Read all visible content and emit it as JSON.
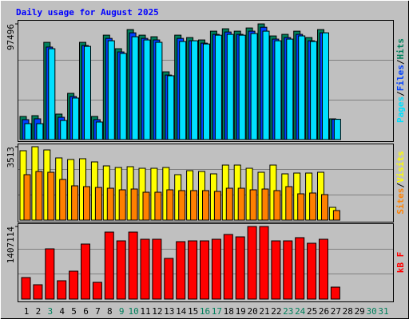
{
  "title": "Daily usage for August 2025",
  "legend_separator": "/",
  "chart_data": [
    {
      "type": "bar",
      "ylim": [
        0,
        97496
      ],
      "yticks": [
        97496
      ],
      "series": [
        {
          "name": "Hits",
          "color": "#00805c",
          "values": [
            19488,
            20160,
            81984,
            21504,
            38976,
            81984,
            19488,
            88032,
            76608,
            92736,
            88032,
            86688,
            57120,
            88032,
            86016,
            84000,
            91392,
            93408,
            91392,
            94080,
            97496,
            87360,
            88704,
            91392,
            86016,
            92736,
            17472,
            0,
            0,
            0,
            0
          ]
        },
        {
          "name": "Files",
          "color": "#0040ff",
          "values": [
            16800,
            17500,
            78000,
            18800,
            36300,
            79300,
            16800,
            85300,
            73900,
            90000,
            85300,
            84000,
            54400,
            85300,
            83300,
            81300,
            88700,
            90700,
            88700,
            91400,
            94700,
            84700,
            86000,
            88700,
            83300,
            90000,
            17100,
            0,
            0,
            0,
            0
          ]
        },
        {
          "name": "Pages",
          "color": "#00e0ff",
          "values": [
            13440,
            13400,
            76600,
            16100,
            35000,
            78600,
            14800,
            83300,
            72600,
            86700,
            84000,
            82000,
            53800,
            82700,
            83300,
            80600,
            88000,
            88700,
            88000,
            89400,
            91400,
            83300,
            84700,
            87400,
            82700,
            90000,
            17100,
            0,
            0,
            0,
            0
          ]
        }
      ]
    },
    {
      "type": "bar",
      "ylim": [
        0,
        3513
      ],
      "yticks": [
        3513
      ],
      "series": [
        {
          "name": "Visits",
          "color": "#ffff00",
          "values": [
            3322,
            3513,
            3360,
            2978,
            2902,
            2940,
            2787,
            2596,
            2520,
            2558,
            2482,
            2482,
            2520,
            2176,
            2367,
            2329,
            2215,
            2635,
            2635,
            2482,
            2291,
            2635,
            2215,
            2253,
            2253,
            2291,
            611,
            0,
            0,
            0,
            0
          ]
        },
        {
          "name": "Sites",
          "color": "#ff8000",
          "values": [
            2176,
            2329,
            2291,
            1947,
            1642,
            1604,
            1565,
            1527,
            1451,
            1489,
            1336,
            1336,
            1451,
            1413,
            1413,
            1413,
            1375,
            1527,
            1527,
            1451,
            1489,
            1413,
            1604,
            1260,
            1298,
            1222,
            458,
            0,
            0,
            0,
            0
          ]
        }
      ]
    },
    {
      "type": "bar",
      "ylim": [
        0,
        1407114
      ],
      "yticks": [
        1407114
      ],
      "categories": [
        "1",
        "2",
        "3",
        "4",
        "5",
        "6",
        "7",
        "8",
        "9",
        "10",
        "11",
        "12",
        "13",
        "14",
        "15",
        "16",
        "17",
        "18",
        "19",
        "20",
        "21",
        "22",
        "23",
        "24",
        "25",
        "26",
        "27",
        "28",
        "29",
        "30",
        "31"
      ],
      "category_colors": [
        "#000000",
        "#000000",
        "#00805c",
        "#000000",
        "#000000",
        "#000000",
        "#000000",
        "#000000",
        "#00805c",
        "#00805c",
        "#000000",
        "#000000",
        "#000000",
        "#000000",
        "#000000",
        "#00805c",
        "#00805c",
        "#000000",
        "#000000",
        "#000000",
        "#000000",
        "#000000",
        "#00805c",
        "#00805c",
        "#000000",
        "#000000",
        "#000000",
        "#000000",
        "#000000",
        "#00805c",
        "#00805c"
      ],
      "series": [
        {
          "name": "kB F",
          "color": "#ff0000",
          "values": [
            417500,
            278300,
            974200,
            355600,
            541200,
            1067000,
            324700,
            1298900,
            1128800,
            1298900,
            1159700,
            1159700,
            788600,
            1113300,
            1128800,
            1128800,
            1159700,
            1252500,
            1206100,
            1407114,
            1407114,
            1128800,
            1128800,
            1190700,
            1082400,
            1159700,
            231900,
            0,
            0,
            0,
            0
          ]
        }
      ]
    }
  ]
}
